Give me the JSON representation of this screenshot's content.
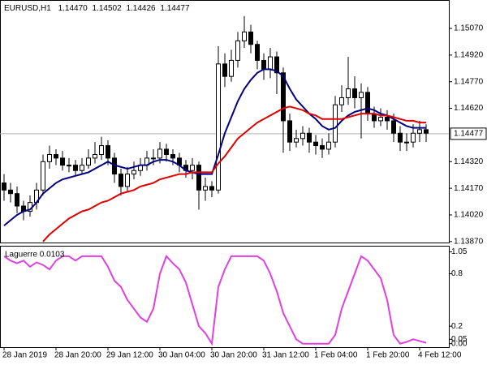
{
  "chart_data": {
    "type": "candlestick",
    "symbol": "EURUSD,H1",
    "header_values": [
      "1.14470",
      "1.14502",
      "1.14426",
      "1.14477"
    ],
    "categories": [
      "28 Jan 2019",
      null,
      null,
      null,
      null,
      null,
      null,
      null,
      "28 Jan 20:00",
      null,
      null,
      null,
      null,
      null,
      null,
      null,
      "29 Jan 12:00",
      null,
      null,
      null,
      null,
      null,
      null,
      null,
      "30 Jan 04:00",
      null,
      null,
      null,
      null,
      null,
      null,
      null,
      "30 Jan 20:00",
      null,
      null,
      null,
      null,
      null,
      null,
      null,
      "31 Jan 12:00",
      null,
      null,
      null,
      null,
      null,
      null,
      null,
      "1 Feb 04:00",
      null,
      null,
      null,
      null,
      null,
      null,
      null,
      "1 Feb 20:00",
      null,
      null,
      null,
      null,
      null,
      null,
      null,
      "4 Feb 12:00",
      null
    ],
    "open": [
      1.142,
      1.1416,
      1.1414,
      1.1407,
      1.1404,
      1.1409,
      1.1416,
      1.1432,
      1.1436,
      1.1434,
      1.143,
      1.143,
      1.1427,
      1.143,
      1.1434,
      1.1436,
      1.1441,
      1.1434,
      1.1425,
      1.1418,
      1.1425,
      1.1427,
      1.143,
      1.1434,
      1.1434,
      1.1439,
      1.1436,
      1.1434,
      1.143,
      1.1427,
      1.143,
      1.1416,
      1.1418,
      1.1416,
      1.1487,
      1.148,
      1.1489,
      1.15,
      1.1505,
      1.1498,
      1.1489,
      1.1484,
      1.1491,
      1.1482,
      1.1455,
      1.1443,
      1.1445,
      1.1448,
      1.1443,
      1.1441,
      1.1439,
      1.1443,
      1.1464,
      1.1468,
      1.1473,
      1.1468,
      1.1471,
      1.1459,
      1.1455,
      1.1457,
      1.1455,
      1.1448,
      1.1443,
      1.1443,
      1.1448,
      1.145
    ],
    "high": [
      1.1425,
      1.142,
      1.1418,
      1.141,
      1.1413,
      1.142,
      1.1436,
      1.1441,
      1.1439,
      1.1438,
      1.1434,
      1.1433,
      1.1434,
      1.1439,
      1.1443,
      1.1446,
      1.1444,
      1.1437,
      1.1428,
      1.1429,
      1.1432,
      1.1434,
      1.1438,
      1.1439,
      1.1443,
      1.1442,
      1.1439,
      1.1437,
      1.1433,
      1.1434,
      1.1432,
      1.1423,
      1.1421,
      1.1497,
      1.1493,
      1.1495,
      1.1505,
      1.1514,
      1.1509,
      1.15,
      1.1493,
      1.1496,
      1.1494,
      1.1485,
      1.1459,
      1.145,
      1.1452,
      1.1451,
      1.1447,
      1.1445,
      1.1448,
      1.1469,
      1.1475,
      1.1491,
      1.148,
      1.1476,
      1.1474,
      1.1463,
      1.1462,
      1.1461,
      1.1459,
      1.1452,
      1.1448,
      1.1453,
      1.1455,
      1.1453
    ],
    "low": [
      1.141,
      1.1409,
      1.1403,
      1.1399,
      1.1401,
      1.1405,
      1.1413,
      1.1428,
      1.143,
      1.1427,
      1.1426,
      1.1424,
      1.1425,
      1.1428,
      1.1431,
      1.1433,
      1.143,
      1.142,
      1.1413,
      1.1415,
      1.1422,
      1.1424,
      1.1427,
      1.143,
      1.1431,
      1.1432,
      1.143,
      1.1426,
      1.1423,
      1.1422,
      1.1405,
      1.141,
      1.1412,
      1.1414,
      1.1474,
      1.1477,
      1.1485,
      1.1496,
      1.1493,
      1.1484,
      1.1478,
      1.1479,
      1.147,
      1.1437,
      1.1438,
      1.144,
      1.1441,
      1.1437,
      1.1436,
      1.1434,
      1.1436,
      1.144,
      1.146,
      1.1464,
      1.1462,
      1.1445,
      1.1455,
      1.1451,
      1.1452,
      1.145,
      1.1443,
      1.1438,
      1.1438,
      1.144,
      1.1443,
      1.1443
    ],
    "close": [
      1.1416,
      1.1414,
      1.1407,
      1.1404,
      1.1409,
      1.1416,
      1.1432,
      1.1436,
      1.1434,
      1.143,
      1.143,
      1.1427,
      1.143,
      1.1434,
      1.1436,
      1.1441,
      1.1434,
      1.1425,
      1.1418,
      1.1425,
      1.1427,
      1.143,
      1.1434,
      1.1434,
      1.1439,
      1.1436,
      1.1434,
      1.143,
      1.1427,
      1.143,
      1.1416,
      1.1418,
      1.1416,
      1.1487,
      1.148,
      1.1489,
      1.15,
      1.1505,
      1.1498,
      1.1489,
      1.1484,
      1.1491,
      1.1482,
      1.1455,
      1.1443,
      1.1445,
      1.1448,
      1.1443,
      1.1441,
      1.1439,
      1.1443,
      1.1464,
      1.1468,
      1.1473,
      1.1468,
      1.1471,
      1.1459,
      1.1455,
      1.1457,
      1.1455,
      1.1448,
      1.1443,
      1.1443,
      1.1448,
      1.145,
      1.1448
    ],
    "up_color": "#ffffff",
    "down_color": "#000000",
    "outline_color": "#000000",
    "overlays": [
      {
        "color": "#000080",
        "values": [
          1.1396,
          1.1399,
          1.1402,
          1.1404,
          1.1405,
          1.1409,
          1.1414,
          1.1417,
          1.142,
          1.1422,
          1.1423,
          1.1424,
          1.1425,
          1.1426,
          1.1428,
          1.143,
          1.1432,
          1.143,
          1.1429,
          1.1428,
          1.1429,
          1.143,
          1.143,
          1.1432,
          1.1433,
          1.1433,
          1.1432,
          1.143,
          1.1427,
          1.1426,
          1.1425,
          1.1425,
          1.1425,
          1.1436,
          1.1448,
          1.1457,
          1.1466,
          1.1473,
          1.1478,
          1.1482,
          1.1484,
          1.1484,
          1.1483,
          1.148,
          1.1473,
          1.1467,
          1.1463,
          1.1459,
          1.1456,
          1.1452,
          1.145,
          1.1451,
          1.1455,
          1.1458,
          1.146,
          1.1461,
          1.1462,
          1.1461,
          1.1459,
          1.1458,
          1.1456,
          1.1454,
          1.1452,
          1.1451,
          1.1451,
          1.1451
        ]
      },
      {
        "color": "#e00000",
        "values": [
          null,
          null,
          null,
          null,
          null,
          null,
          1.1387,
          1.1391,
          1.1394,
          1.1397,
          1.14,
          1.1402,
          1.1404,
          1.1405,
          1.1407,
          1.1409,
          1.141,
          1.1412,
          1.1414,
          1.1415,
          1.1416,
          1.1418,
          1.1419,
          1.142,
          1.1422,
          1.1423,
          1.1424,
          1.1425,
          1.1425,
          1.1426,
          1.1426,
          1.1426,
          1.1426,
          1.1431,
          1.1435,
          1.144,
          1.1445,
          1.1448,
          1.1451,
          1.1454,
          1.1456,
          1.1458,
          1.146,
          1.1462,
          1.1463,
          1.1462,
          1.1461,
          1.1459,
          1.1458,
          1.1456,
          1.1456,
          1.1456,
          1.1456,
          1.1457,
          1.1458,
          1.1459,
          1.1459,
          1.1459,
          1.1458,
          1.1458,
          1.1457,
          1.1456,
          1.1455,
          1.1455,
          1.1454,
          1.1454
        ]
      }
    ],
    "current_price": {
      "value": 1.14477,
      "label": "1.14477"
    },
    "ylim": [
      1.1386,
      1.1523
    ],
    "yticks": [
      {
        "value": 1.1507,
        "label": "1.15070"
      },
      {
        "value": 1.1492,
        "label": "1.14920"
      },
      {
        "value": 1.1477,
        "label": "1.14770"
      },
      {
        "value": 1.1462,
        "label": "1.14620"
      },
      {
        "value": 1.1432,
        "label": "1.14320"
      },
      {
        "value": 1.1417,
        "label": "1.14170"
      },
      {
        "value": 1.1402,
        "label": "1.14020"
      },
      {
        "value": 1.1387,
        "label": "1.13870"
      }
    ],
    "indicator": {
      "type": "line",
      "title": "Laguerre 0.0103",
      "color": "#e040e0",
      "values": [
        1.0,
        0.95,
        0.92,
        0.95,
        0.88,
        0.93,
        0.9,
        0.85,
        0.95,
        1.0,
        1.0,
        0.95,
        1.0,
        1.0,
        1.0,
        1.0,
        0.88,
        0.72,
        0.65,
        0.5,
        0.4,
        0.3,
        0.25,
        0.4,
        0.8,
        1.0,
        0.92,
        0.85,
        0.7,
        0.45,
        0.2,
        0.12,
        0.0,
        0.65,
        0.85,
        1.0,
        1.0,
        1.0,
        1.0,
        1.0,
        0.95,
        0.8,
        0.6,
        0.35,
        0.2,
        0.05,
        0.0,
        0.0,
        0.0,
        0.0,
        0.0,
        0.1,
        0.4,
        0.6,
        0.8,
        1.0,
        0.95,
        0.85,
        0.75,
        0.5,
        0.1,
        0.0,
        0.02,
        0.05,
        0.03,
        0.01
      ],
      "ylim": [
        -0.04,
        1.12
      ],
      "yticks": [
        1.05,
        0.8,
        0.2,
        0.05,
        {
          "value": 0,
          "label": "0.00"
        }
      ]
    }
  }
}
